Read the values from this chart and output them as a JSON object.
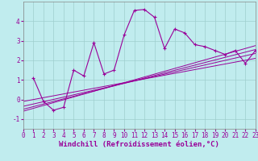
{
  "xlabel": "Windchill (Refroidissement éolien,°C)",
  "bg_color": "#c0ecee",
  "line_color": "#990099",
  "xlim": [
    0,
    23
  ],
  "ylim": [
    -1.5,
    5.0
  ],
  "yticks": [
    -1,
    0,
    1,
    2,
    3,
    4
  ],
  "xticks": [
    0,
    1,
    2,
    3,
    4,
    5,
    6,
    7,
    8,
    9,
    10,
    11,
    12,
    13,
    14,
    15,
    16,
    17,
    18,
    19,
    20,
    21,
    22,
    23
  ],
  "main_x": [
    1,
    2,
    3,
    4,
    5,
    6,
    7,
    8,
    9,
    10,
    11,
    12,
    13,
    14,
    15,
    16,
    17,
    18,
    19,
    20,
    21,
    22,
    23
  ],
  "main_y": [
    1.1,
    -0.1,
    -0.55,
    -0.4,
    1.5,
    1.2,
    2.9,
    1.3,
    1.5,
    3.3,
    4.55,
    4.6,
    4.2,
    2.6,
    3.6,
    3.4,
    2.8,
    2.7,
    2.5,
    2.3,
    2.5,
    1.85,
    2.5
  ],
  "ref_lines": [
    {
      "x": [
        0,
        23
      ],
      "y": [
        -0.6,
        2.75
      ]
    },
    {
      "x": [
        0,
        23
      ],
      "y": [
        -0.5,
        2.55
      ]
    },
    {
      "x": [
        0,
        23
      ],
      "y": [
        -0.35,
        2.35
      ]
    },
    {
      "x": [
        0,
        23
      ],
      "y": [
        -0.1,
        2.1
      ]
    }
  ],
  "grid_color": "#9ecece",
  "xlabel_fontsize": 6.5,
  "tick_fontsize": 5.5
}
